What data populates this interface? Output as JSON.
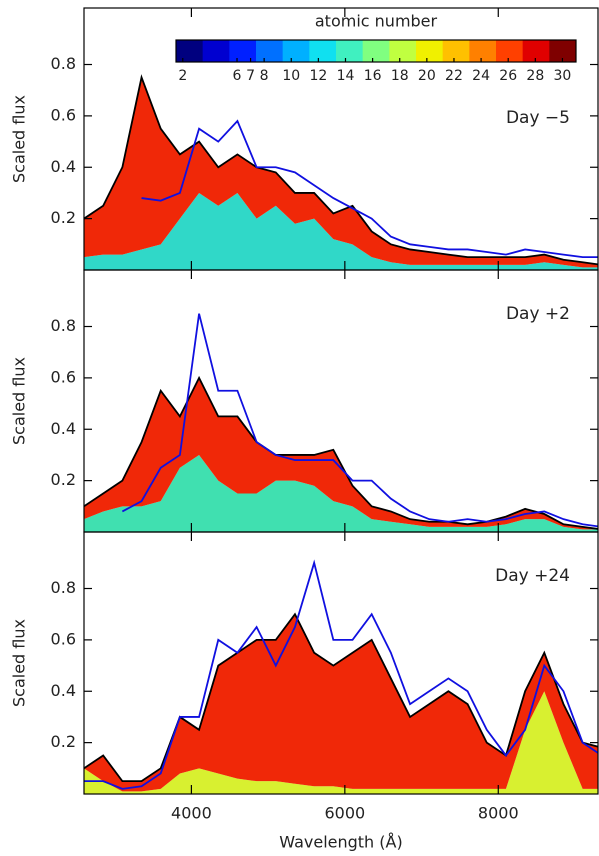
{
  "chart_data": [
    {
      "type": "area",
      "annotation": "Day −5",
      "ylabel": "Scaled flux",
      "x": [
        2600,
        2850,
        3100,
        3350,
        3600,
        3850,
        4100,
        4350,
        4600,
        4850,
        5100,
        5350,
        5600,
        5850,
        6100,
        6350,
        6600,
        6850,
        7100,
        7350,
        7600,
        7850,
        8100,
        8350,
        8600,
        8850,
        9100,
        9350
      ],
      "xlim": [
        2600,
        9300
      ],
      "xticks": [
        4000,
        6000,
        8000
      ],
      "ylim": [
        0,
        1.02
      ],
      "yticks": [
        0.2,
        0.4,
        0.6,
        0.8
      ],
      "series": [
        {
          "color": "#30d8c8",
          "stack": true,
          "values": [
            0.05,
            0.06,
            0.06,
            0.08,
            0.1,
            0.2,
            0.3,
            0.25,
            0.3,
            0.2,
            0.25,
            0.18,
            0.2,
            0.12,
            0.1,
            0.05,
            0.03,
            0.02,
            0.02,
            0.02,
            0.02,
            0.02,
            0.02,
            0.02,
            0.03,
            0.02,
            0.01,
            0.01
          ]
        },
        {
          "color": "#f02808",
          "stack": true,
          "values": [
            0.15,
            0.19,
            0.34,
            0.67,
            0.45,
            0.25,
            0.2,
            0.15,
            0.15,
            0.2,
            0.13,
            0.12,
            0.1,
            0.1,
            0.15,
            0.1,
            0.07,
            0.06,
            0.05,
            0.04,
            0.03,
            0.03,
            0.03,
            0.03,
            0.03,
            0.02,
            0.02,
            0.01
          ]
        },
        {
          "color": "#000000",
          "values": [
            0.2,
            0.25,
            0.4,
            0.75,
            0.55,
            0.45,
            0.5,
            0.4,
            0.45,
            0.4,
            0.38,
            0.3,
            0.3,
            0.22,
            0.25,
            0.15,
            0.1,
            0.08,
            0.07,
            0.06,
            0.05,
            0.05,
            0.05,
            0.05,
            0.06,
            0.04,
            0.03,
            0.02
          ]
        },
        {
          "color": "#1010e0",
          "values": [
            null,
            null,
            null,
            0.28,
            0.27,
            0.3,
            0.55,
            0.5,
            0.58,
            0.4,
            0.4,
            0.38,
            0.33,
            0.28,
            0.24,
            0.2,
            0.13,
            0.1,
            0.09,
            0.08,
            0.08,
            0.07,
            0.06,
            0.08,
            0.07,
            0.06,
            0.05,
            0.05
          ]
        }
      ],
      "colorbar": {
        "label": "atomic number",
        "lim": [
          1.5,
          31
        ],
        "ticks": [
          2,
          6,
          7,
          8,
          10,
          12,
          14,
          16,
          18,
          20,
          22,
          24,
          26,
          28,
          30
        ],
        "colors": [
          "#00007f",
          "#0000d0",
          "#0020ff",
          "#0070ff",
          "#00b0ff",
          "#10e0f0",
          "#40f0c0",
          "#80ff80",
          "#c0ff40",
          "#f0f000",
          "#ffc000",
          "#ff8000",
          "#ff4000",
          "#e00000",
          "#7f0000"
        ]
      }
    },
    {
      "type": "area",
      "annotation": "Day +2",
      "ylabel": "Scaled flux",
      "x": [
        2600,
        2850,
        3100,
        3350,
        3600,
        3850,
        4100,
        4350,
        4600,
        4850,
        5100,
        5350,
        5600,
        5850,
        6100,
        6350,
        6600,
        6850,
        7100,
        7350,
        7600,
        7850,
        8100,
        8350,
        8600,
        8850,
        9100,
        9350
      ],
      "xlim": [
        2600,
        9300
      ],
      "xticks": [
        4000,
        6000,
        8000
      ],
      "ylim": [
        0,
        1.02
      ],
      "yticks": [
        0.2,
        0.4,
        0.6,
        0.8
      ],
      "series": [
        {
          "color": "#40e0b0",
          "stack": true,
          "values": [
            0.05,
            0.08,
            0.1,
            0.1,
            0.12,
            0.25,
            0.3,
            0.2,
            0.15,
            0.15,
            0.2,
            0.2,
            0.18,
            0.12,
            0.1,
            0.05,
            0.04,
            0.03,
            0.02,
            0.02,
            0.02,
            0.02,
            0.03,
            0.05,
            0.05,
            0.02,
            0.01,
            0.01
          ]
        },
        {
          "color": "#f02808",
          "stack": true,
          "values": [
            0.05,
            0.07,
            0.1,
            0.25,
            0.43,
            0.2,
            0.3,
            0.25,
            0.3,
            0.2,
            0.1,
            0.1,
            0.12,
            0.2,
            0.08,
            0.05,
            0.04,
            0.02,
            0.02,
            0.02,
            0.01,
            0.02,
            0.03,
            0.04,
            0.02,
            0.01,
            0.01,
            0
          ]
        },
        {
          "color": "#000000",
          "values": [
            0.1,
            0.15,
            0.2,
            0.35,
            0.55,
            0.45,
            0.6,
            0.45,
            0.45,
            0.35,
            0.3,
            0.3,
            0.3,
            0.32,
            0.18,
            0.1,
            0.08,
            0.05,
            0.04,
            0.04,
            0.03,
            0.04,
            0.06,
            0.09,
            0.07,
            0.03,
            0.02,
            0.01
          ]
        },
        {
          "color": "#1010e0",
          "values": [
            null,
            null,
            0.08,
            0.12,
            0.25,
            0.3,
            0.85,
            0.55,
            0.55,
            0.35,
            0.3,
            0.28,
            0.28,
            0.28,
            0.2,
            0.2,
            0.13,
            0.08,
            0.05,
            0.04,
            0.05,
            0.04,
            0.05,
            0.07,
            0.08,
            0.05,
            0.03,
            0.02
          ]
        }
      ]
    },
    {
      "type": "area",
      "annotation": "Day +24",
      "ylabel": "Scaled flux",
      "xlabel": "Wavelength (Å)",
      "xticklabels": true,
      "x": [
        2600,
        2850,
        3100,
        3350,
        3600,
        3850,
        4100,
        4350,
        4600,
        4850,
        5100,
        5350,
        5600,
        5850,
        6100,
        6350,
        6600,
        6850,
        7100,
        7350,
        7600,
        7850,
        8100,
        8350,
        8600,
        8850,
        9100,
        9350
      ],
      "xlim": [
        2600,
        9300
      ],
      "xticks": [
        4000,
        6000,
        8000
      ],
      "ylim": [
        0,
        1.02
      ],
      "yticks": [
        0.2,
        0.4,
        0.6,
        0.8
      ],
      "series": [
        {
          "color": "#d8f030",
          "stack": true,
          "values": [
            0.1,
            0.05,
            0.01,
            0.01,
            0.02,
            0.08,
            0.1,
            0.08,
            0.06,
            0.05,
            0.05,
            0.04,
            0.03,
            0.03,
            0.02,
            0.02,
            0.02,
            0.02,
            0.02,
            0.02,
            0.02,
            0.02,
            0.02,
            0.25,
            0.4,
            0.2,
            0.02,
            0.02
          ]
        },
        {
          "color": "#f02808",
          "stack": true,
          "values": [
            0,
            0.1,
            0.04,
            0.04,
            0.08,
            0.22,
            0.15,
            0.42,
            0.49,
            0.55,
            0.55,
            0.66,
            0.52,
            0.47,
            0.53,
            0.58,
            0.43,
            0.28,
            0.33,
            0.38,
            0.33,
            0.18,
            0.13,
            0.15,
            0.15,
            0.15,
            0.18,
            0.16
          ]
        },
        {
          "color": "#000000",
          "values": [
            0.1,
            0.15,
            0.05,
            0.05,
            0.1,
            0.3,
            0.25,
            0.5,
            0.55,
            0.6,
            0.6,
            0.7,
            0.55,
            0.5,
            0.55,
            0.6,
            0.45,
            0.3,
            0.35,
            0.4,
            0.35,
            0.2,
            0.15,
            0.4,
            0.55,
            0.35,
            0.2,
            0.18
          ]
        },
        {
          "color": "#1010e0",
          "values": [
            0.05,
            0.05,
            0.02,
            0.03,
            0.08,
            0.3,
            0.3,
            0.6,
            0.55,
            0.65,
            0.5,
            0.65,
            0.9,
            0.6,
            0.6,
            0.7,
            0.55,
            0.35,
            0.4,
            0.45,
            0.4,
            0.25,
            0.15,
            0.25,
            0.5,
            0.4,
            0.2,
            0.15
          ]
        }
      ]
    }
  ]
}
